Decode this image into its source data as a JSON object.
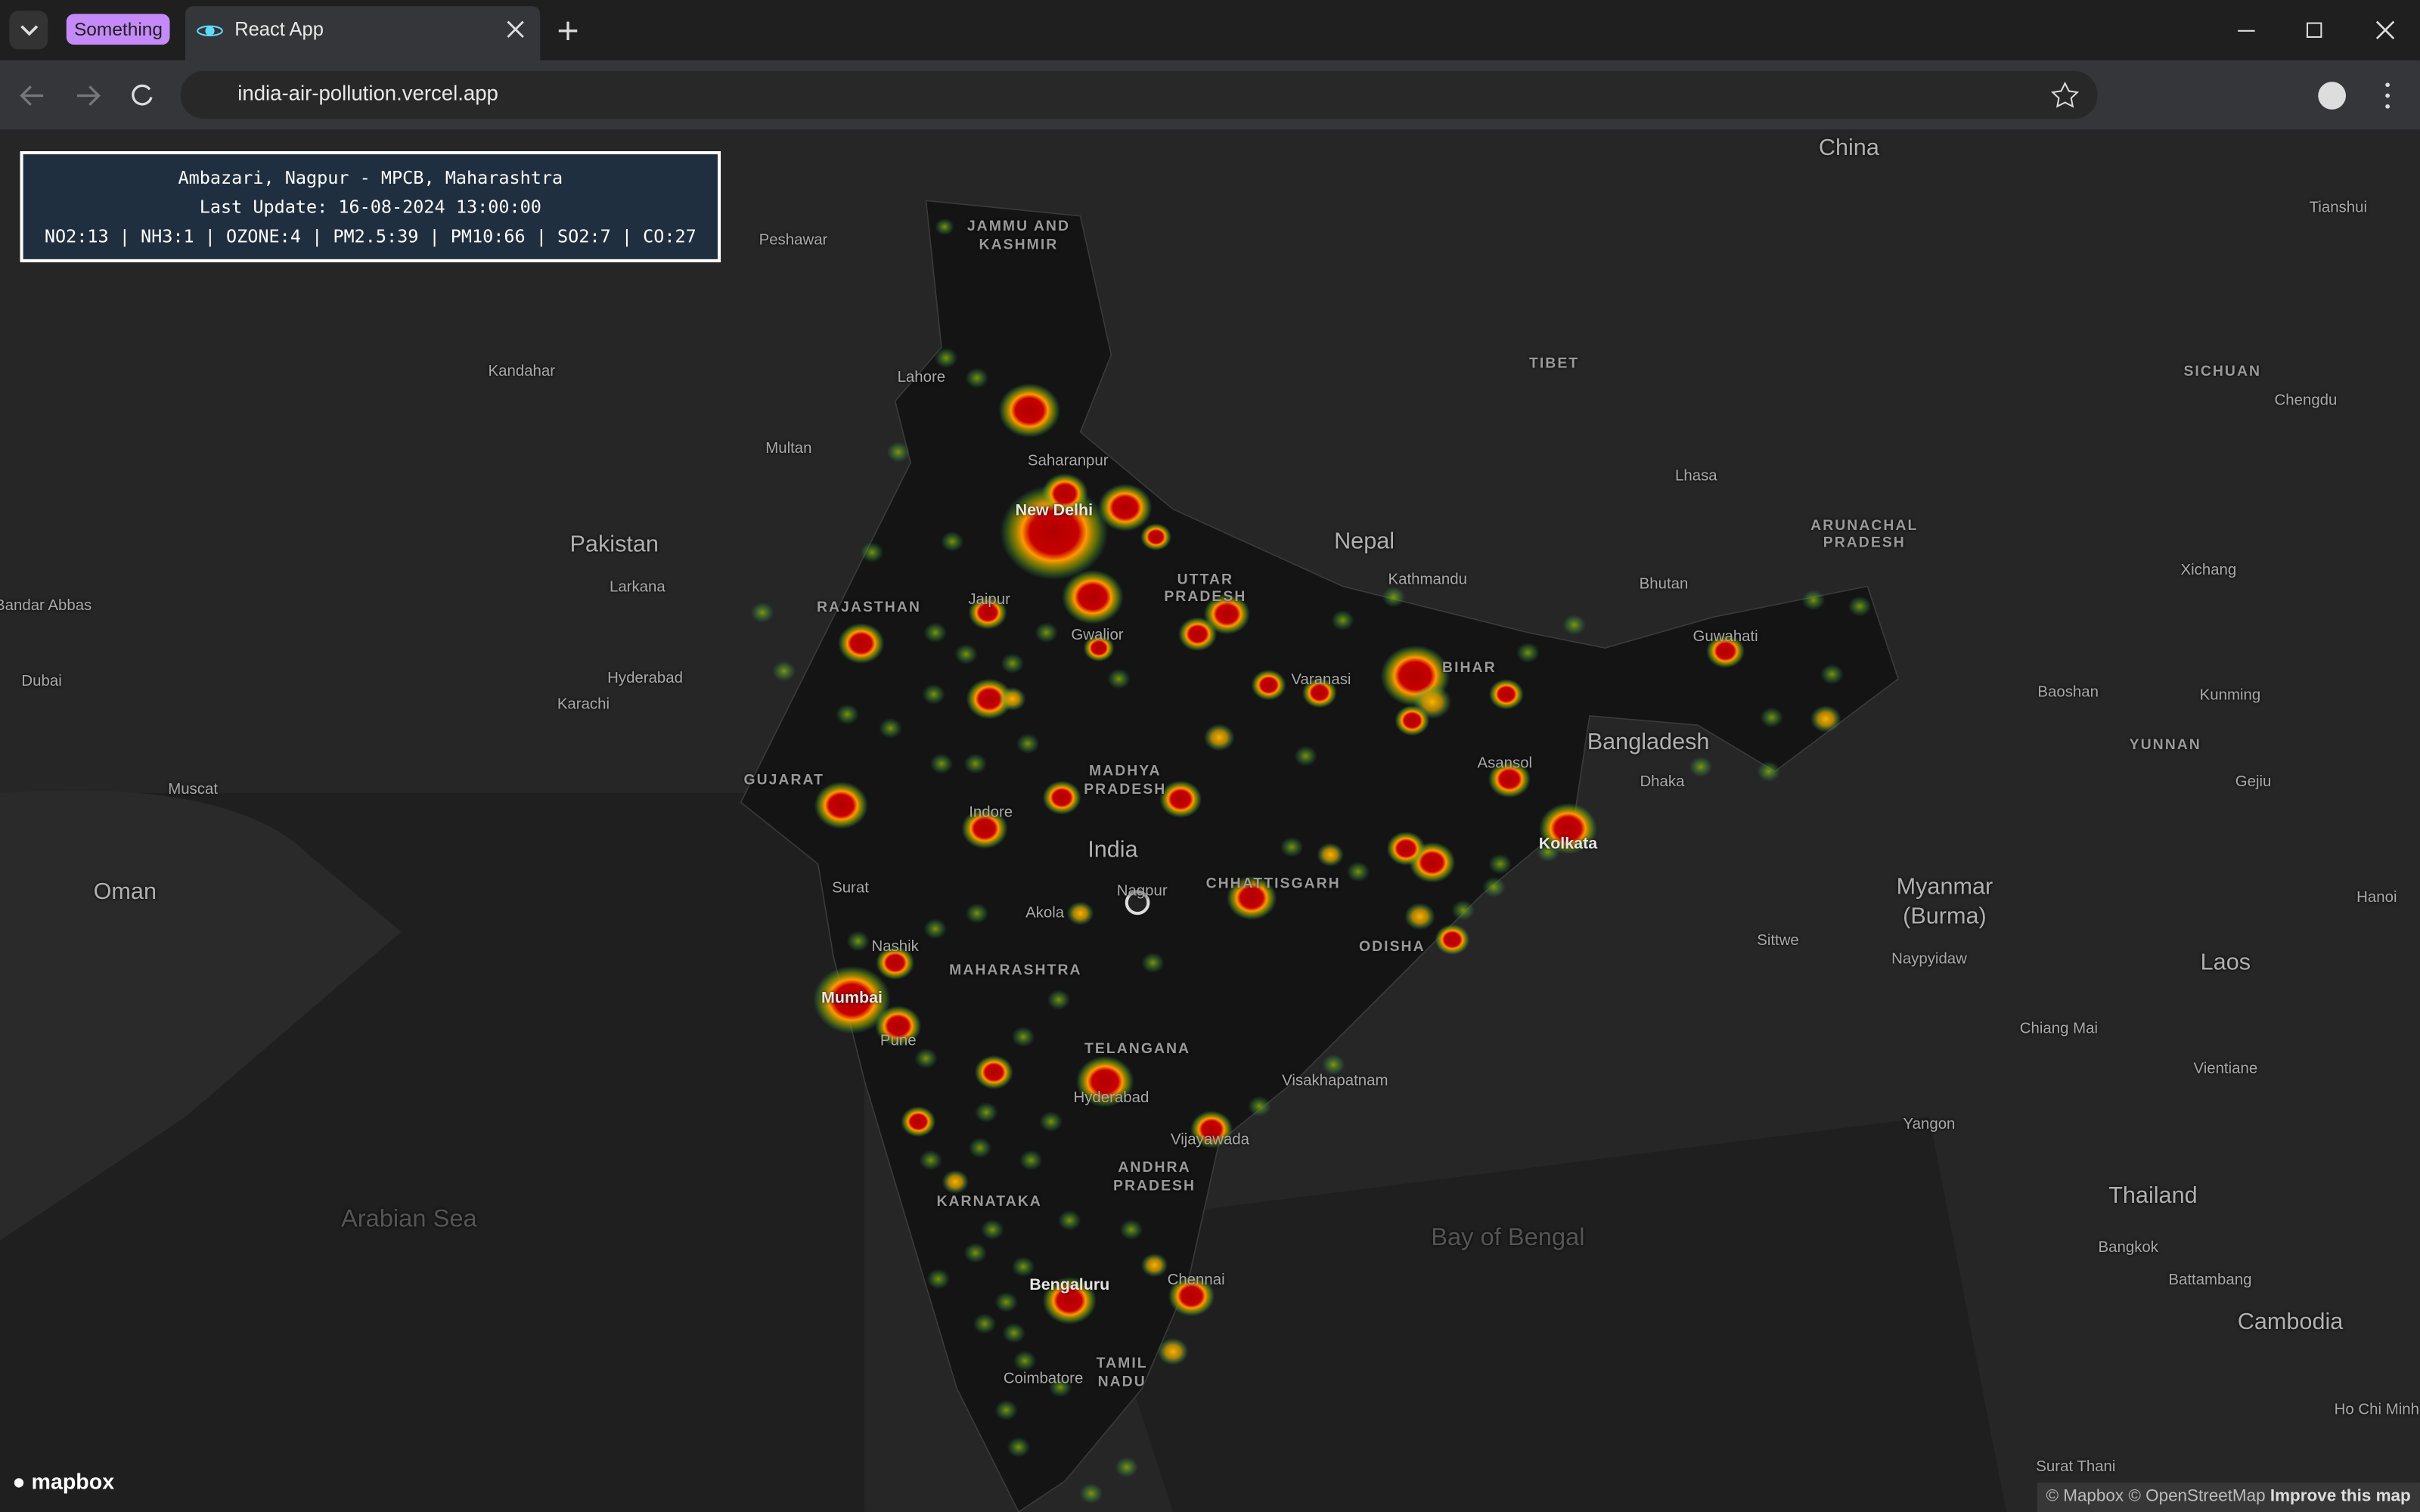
{
  "browser": {
    "tab_group": "Something",
    "tab_title": "React App",
    "url": "india-air-pollution.vercel.app"
  },
  "info_panel": {
    "station": "Ambazari, Nagpur - MPCB, Maharashtra",
    "last_update": "Last Update: 16-08-2024 13:00:00",
    "readings": "NO2:13 | NH3:1 | OZONE:4 | PM2.5:39 | PM10:66 | SO2:7 | CO:27"
  },
  "map": {
    "labels": [
      "China",
      "Tianshui",
      "TIBET",
      "SICHUAN",
      "Chengdu",
      "JAMMU AND",
      "KASHMIR",
      "Peshawar",
      "Kandahar",
      "Lahore",
      "Multan",
      "Saharanpur",
      "New Delhi",
      "Pakistan",
      "Nepal",
      "Larkana",
      "Kathmandu",
      "UTTAR",
      "PRADESH",
      "Bandar Abbas",
      "RAJASTHAN",
      "Jaipur",
      "Bhutan",
      "Lhasa",
      "ARUNACHAL",
      "PRADESH",
      "Xichang",
      "Gwalior",
      "Guwahati",
      "Dubai",
      "Hyderabad",
      "Varanasi",
      "BIHAR",
      "Karachi",
      "Baoshan",
      "Kunming",
      "Bangladesh",
      "YUNNAN",
      "Asansol",
      "Dhaka",
      "Muscat",
      "GUJARAT",
      "MADHYA",
      "PRADESH",
      "Gejiu",
      "Indore",
      "Kolkata",
      "India",
      "Oman",
      "Surat",
      "CHHATTISGARH",
      "Myanmar",
      "(Burma)",
      "Hanoi",
      "Akola",
      "Nagpur",
      "Sittwe",
      "ODISHA",
      "Nashik",
      "Naypyidaw",
      "Laos",
      "MAHARASHTRA",
      "Mumbai",
      "Chiang Mai",
      "TELANGANA",
      "Pune",
      "Vientiane",
      "Visakhapatnam",
      "Hyderabad",
      "Yangon",
      "Vijayawada",
      "ANDHRA",
      "PRADESH",
      "KARNATAKA",
      "Thailand",
      "Arabian Sea",
      "Bay of Bengal",
      "Bangkok",
      "Battambang",
      "Bengaluru",
      "Chennai",
      "Cambodia",
      "TAMIL",
      "NADU",
      "Coimbatore",
      "Ho Chi Minh",
      "Surat Thani"
    ]
  },
  "attribution": {
    "logo": "mapbox",
    "credits": "© Mapbox © OpenStreetMap",
    "improve": "Improve this map"
  }
}
